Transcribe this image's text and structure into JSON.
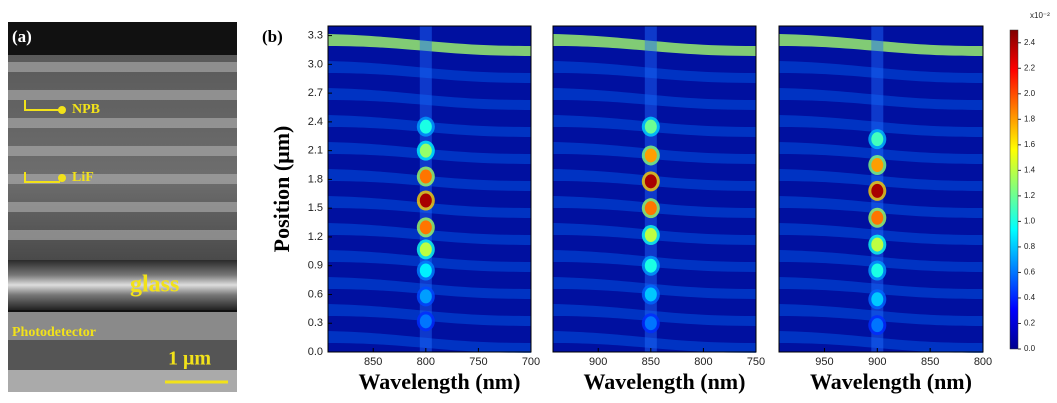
{
  "panel_a": {
    "label": "(a)",
    "npb": "NPB",
    "lif": "LiF",
    "glass": "glass",
    "photodetector": "Photodetector",
    "scale_bar": "1 μm"
  },
  "panel_b_label": "(b)",
  "chart_data": [
    {
      "type": "heatmap",
      "xlabel": "Wavelength (nm)",
      "ylabel": "Position (μm)",
      "xlim": [
        893,
        700
      ],
      "xticks": [
        850,
        800,
        750,
        700
      ],
      "ylim": [
        0,
        3.4
      ],
      "yticks": [
        {
          "value": 0,
          "label": "0.0"
        },
        0.3,
        0.6,
        0.9,
        1.2,
        1.5,
        1.8,
        2.1,
        2.4,
        2.7,
        {
          "value": 3,
          "label": "3.0"
        },
        3.3
      ],
      "x": [
        800,
        800,
        800,
        800,
        800,
        800,
        800,
        800,
        800
      ],
      "y": [
        0.32,
        0.58,
        0.85,
        1.07,
        1.3,
        1.58,
        1.83,
        2.1,
        2.35
      ],
      "values": [
        0.6,
        0.7,
        0.9,
        1.4,
        1.9,
        2.4,
        1.9,
        1.3,
        1.0
      ]
    },
    {
      "type": "heatmap",
      "xlabel": "Wavelength (nm)",
      "xlim": [
        943,
        750
      ],
      "xticks": [
        900,
        850,
        800,
        750
      ],
      "ylim": [
        0,
        3.4
      ],
      "x": [
        850,
        850,
        850,
        850,
        850,
        850,
        850,
        850
      ],
      "y": [
        0.3,
        0.6,
        0.9,
        1.22,
        1.5,
        1.78,
        2.05,
        2.35
      ],
      "values": [
        0.6,
        0.8,
        1.0,
        1.4,
        1.9,
        2.4,
        1.8,
        1.2
      ]
    },
    {
      "type": "heatmap",
      "xlabel": "Wavelength (nm)",
      "xlim": [
        993,
        800
      ],
      "xticks": [
        950,
        900,
        850,
        800
      ],
      "ylim": [
        0,
        3.4
      ],
      "x": [
        900,
        900,
        900,
        900,
        900,
        900,
        900,
        900
      ],
      "y": [
        0.28,
        0.55,
        0.85,
        1.12,
        1.4,
        1.68,
        1.95,
        2.22
      ],
      "values": [
        0.6,
        0.8,
        1.0,
        1.4,
        1.9,
        2.4,
        1.8,
        1.1
      ]
    }
  ],
  "colorbar": {
    "lim": [
      0,
      2.5
    ],
    "multiplier": "x10⁻²",
    "ticks": [
      {
        "value": 0,
        "label": "0.0"
      },
      0.2,
      0.4,
      0.6,
      0.8,
      {
        "value": 1,
        "label": "1.0"
      },
      1.2,
      1.4,
      1.6,
      1.8,
      {
        "value": 2,
        "label": "2.0"
      },
      2.2,
      2.4
    ]
  }
}
